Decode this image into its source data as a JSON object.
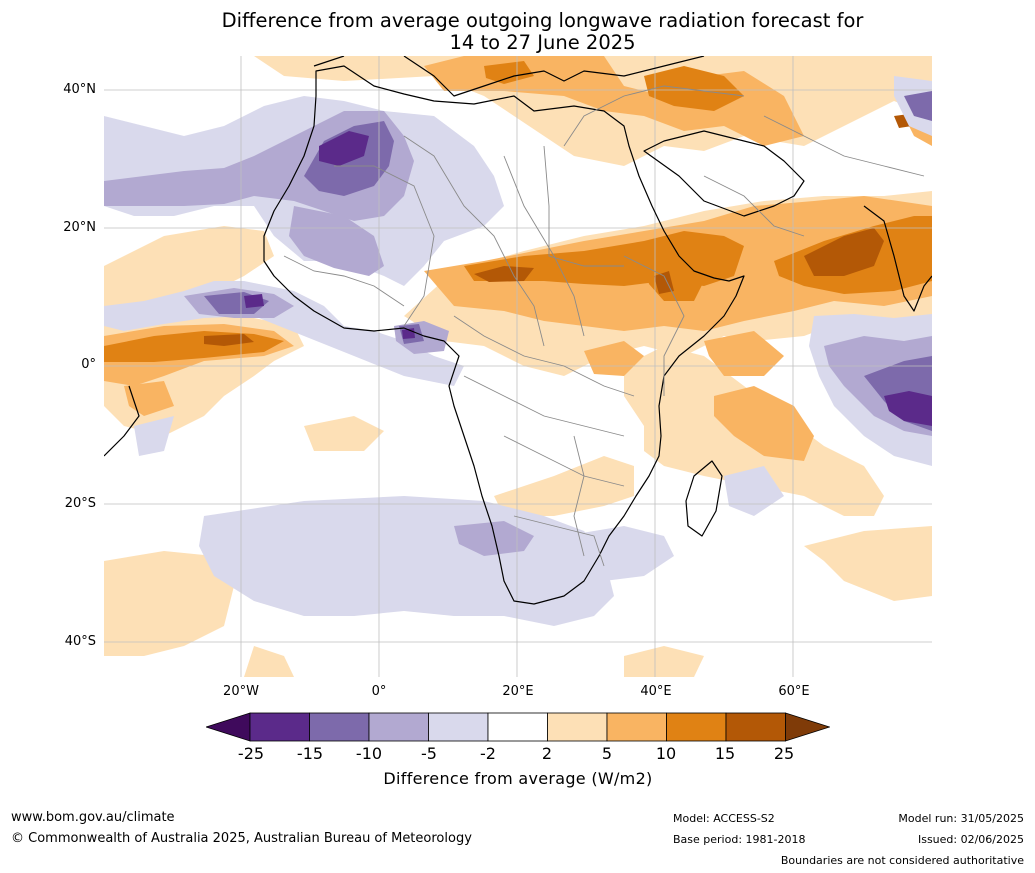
{
  "title_line1": "Difference from average outgoing longwave radiation forecast for",
  "title_line2": "14 to 27 June 2025",
  "latitude_labels": [
    "40°N",
    "20°N",
    "0°",
    "20°S",
    "40°S"
  ],
  "longitude_labels": [
    "20°W",
    "0°",
    "20°E",
    "40°E",
    "60°E"
  ],
  "colorbar": {
    "tick_labels": [
      "-25",
      "-15",
      "-10",
      "-5",
      "-2",
      "2",
      "5",
      "10",
      "15",
      "25"
    ],
    "colors": [
      "#3f0a5c",
      "#5b2a8a",
      "#7d6aab",
      "#b2a9d1",
      "#d9d9ec",
      "#ffffff",
      "#fde0b6",
      "#f9b462",
      "#e08214",
      "#b35806",
      "#7f3b08"
    ],
    "title": "Difference from average (W/m2)"
  },
  "footer": {
    "website": "www.bom.gov.au/climate",
    "copyright": "© Commonwealth of Australia 2025, Australian Bureau of Meteorology",
    "model": "Model: ACCESS-S2",
    "base_period": "Base period: 1981-2018",
    "model_run": "Model run: 31/05/2025",
    "issued": "Issued: 02/06/2025",
    "disclaimer": "Boundaries are not considered authoritative"
  }
}
